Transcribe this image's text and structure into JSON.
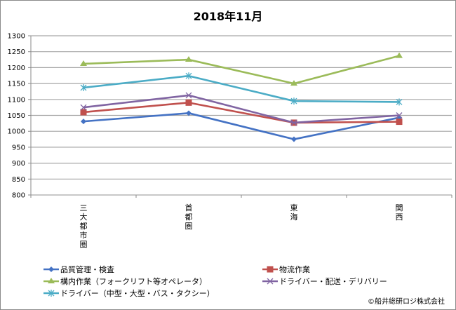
{
  "chart_data": {
    "type": "line",
    "title": "2018年11月",
    "xlabel": "",
    "ylabel": "",
    "categories": [
      "三大都市圏",
      "首都圏",
      "東海",
      "関西"
    ],
    "ylim": [
      800,
      1300
    ],
    "yticks": [
      1300,
      1250,
      1200,
      1150,
      1100,
      1050,
      1000,
      950,
      900,
      850,
      800
    ],
    "grid": true,
    "legend_position": "bottom",
    "series": [
      {
        "name": "品質管理・検査",
        "color": "#4472C4",
        "marker": "diamond",
        "values": [
          1031,
          1057,
          975,
          1043
        ]
      },
      {
        "name": "物流作業",
        "color": "#C0504D",
        "marker": "square",
        "values": [
          1060,
          1090,
          1027,
          1030
        ]
      },
      {
        "name": "構内作業（フォークリフト等オペレータ）",
        "color": "#9BBB59",
        "marker": "triangle",
        "values": [
          1212,
          1225,
          1150,
          1237
        ]
      },
      {
        "name": "ドライバー・配送・デリバリー",
        "color": "#8064A2",
        "marker": "x",
        "values": [
          1075,
          1113,
          1027,
          1050
        ]
      },
      {
        "name": "ドライバー（中型・大型・バス・タクシー）",
        "color": "#4BACC6",
        "marker": "star",
        "values": [
          1137,
          1174,
          1095,
          1092
        ]
      }
    ]
  },
  "copyright": "©船井総研ロジ株式会社"
}
